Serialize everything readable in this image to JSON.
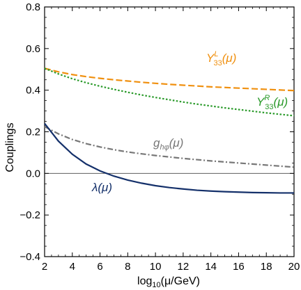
{
  "chart_data": {
    "type": "line",
    "title": "",
    "xlabel": "log10(μ/GeV)",
    "xlabel_parts": {
      "pre": "log",
      "sub": "10",
      "post": "(μ/GeV)"
    },
    "ylabel": "Couplings",
    "xlim": [
      2,
      20
    ],
    "ylim": [
      -0.4,
      0.8
    ],
    "xticks": [
      2,
      4,
      6,
      8,
      10,
      12,
      14,
      16,
      18,
      20
    ],
    "xtick_labels": [
      "2",
      "4",
      "6",
      "8",
      "10",
      "12",
      "14",
      "16",
      "18",
      "20"
    ],
    "yticks": [
      -0.4,
      -0.2,
      0.0,
      0.2,
      0.4,
      0.6,
      0.8
    ],
    "ytick_labels": [
      "−0.4",
      "−0.2",
      "0.0",
      "0.2",
      "0.4",
      "0.6",
      "0.8"
    ],
    "grid": false,
    "zero_line": true,
    "series": [
      {
        "name": "Y^L_33(μ)",
        "label": {
          "main": "Y",
          "sup": "L",
          "sub": "33",
          "arg": "(μ)"
        },
        "color": "#f0900f",
        "style": "dashed",
        "x": [
          2,
          3,
          4,
          5,
          6,
          7,
          8,
          9,
          10,
          11,
          12,
          13,
          14,
          15,
          16,
          17,
          18,
          19,
          20
        ],
        "y": [
          0.505,
          0.488,
          0.475,
          0.465,
          0.457,
          0.45,
          0.444,
          0.438,
          0.433,
          0.428,
          0.424,
          0.42,
          0.416,
          0.413,
          0.41,
          0.407,
          0.404,
          0.401,
          0.398
        ]
      },
      {
        "name": "Y^R_33(μ)",
        "label": {
          "main": "Y",
          "sup": "R",
          "sub": "33",
          "arg": "(μ)"
        },
        "color": "#2a9a2a",
        "style": "dotted",
        "x": [
          2,
          3,
          4,
          5,
          6,
          7,
          8,
          9,
          10,
          11,
          12,
          13,
          14,
          15,
          16,
          17,
          18,
          19,
          20
        ],
        "y": [
          0.505,
          0.478,
          0.455,
          0.436,
          0.419,
          0.404,
          0.39,
          0.377,
          0.365,
          0.354,
          0.343,
          0.333,
          0.324,
          0.315,
          0.307,
          0.299,
          0.291,
          0.284,
          0.277
        ]
      },
      {
        "name": "g_hφ(μ)",
        "label": {
          "main": "g",
          "sub": "hφ",
          "arg": "(μ)"
        },
        "color": "#777777",
        "style": "dashdot",
        "x": [
          2,
          3,
          4,
          5,
          6,
          7,
          8,
          9,
          10,
          11,
          12,
          13,
          14,
          15,
          16,
          17,
          18,
          19,
          20
        ],
        "y": [
          0.225,
          0.19,
          0.163,
          0.143,
          0.127,
          0.114,
          0.103,
          0.094,
          0.086,
          0.079,
          0.072,
          0.066,
          0.06,
          0.055,
          0.05,
          0.045,
          0.04,
          0.035,
          0.03
        ]
      },
      {
        "name": "λ(μ)",
        "label": {
          "main": "λ",
          "arg": "(μ)"
        },
        "color": "#14306a",
        "style": "solid",
        "x": [
          2,
          3,
          4,
          5,
          6,
          7,
          8,
          9,
          10,
          11,
          12,
          13,
          14,
          15,
          16,
          17,
          18,
          19,
          20
        ],
        "y": [
          0.24,
          0.155,
          0.092,
          0.045,
          0.012,
          -0.013,
          -0.032,
          -0.047,
          -0.059,
          -0.068,
          -0.075,
          -0.081,
          -0.085,
          -0.088,
          -0.09,
          -0.092,
          -0.093,
          -0.094,
          -0.094
        ]
      }
    ]
  }
}
